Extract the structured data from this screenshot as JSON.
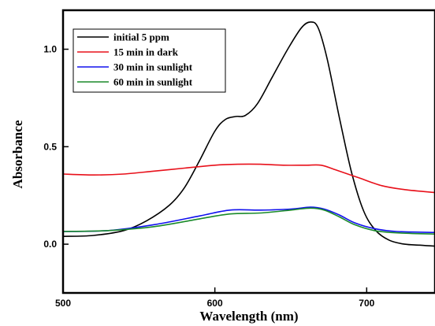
{
  "chart_data": {
    "type": "line",
    "title": "",
    "xlabel": "Wavelength (nm)",
    "ylabel": "Absorbance",
    "xlim": [
      500,
      745
    ],
    "ylim": [
      -0.25,
      1.2
    ],
    "x_ticks": [
      500,
      600,
      700
    ],
    "x_tick_labels": [
      "500",
      "600",
      "700"
    ],
    "y_ticks": [
      0.0,
      0.5,
      1.0
    ],
    "y_tick_labels": [
      "0.0",
      "0.5",
      "1.0"
    ],
    "grid": false,
    "legend_position": "top-left",
    "series": [
      {
        "name": "initial 5 ppm",
        "color": "#000000",
        "points": [
          [
            500,
            0.04
          ],
          [
            520,
            0.045
          ],
          [
            540,
            0.07
          ],
          [
            555,
            0.12
          ],
          [
            570,
            0.2
          ],
          [
            580,
            0.29
          ],
          [
            590,
            0.43
          ],
          [
            600,
            0.58
          ],
          [
            607,
            0.64
          ],
          [
            614,
            0.655
          ],
          [
            620,
            0.66
          ],
          [
            628,
            0.72
          ],
          [
            638,
            0.86
          ],
          [
            648,
            1.0
          ],
          [
            657,
            1.11
          ],
          [
            663,
            1.14
          ],
          [
            668,
            1.11
          ],
          [
            674,
            0.95
          ],
          [
            682,
            0.65
          ],
          [
            690,
            0.37
          ],
          [
            698,
            0.17
          ],
          [
            706,
            0.07
          ],
          [
            715,
            0.02
          ],
          [
            725,
            0.0
          ],
          [
            735,
            -0.005
          ],
          [
            745,
            -0.01
          ]
        ]
      },
      {
        "name": "15 min in dark",
        "color": "#e8101a",
        "points": [
          [
            500,
            0.36
          ],
          [
            520,
            0.355
          ],
          [
            540,
            0.36
          ],
          [
            560,
            0.375
          ],
          [
            580,
            0.39
          ],
          [
            600,
            0.405
          ],
          [
            615,
            0.41
          ],
          [
            630,
            0.41
          ],
          [
            645,
            0.405
          ],
          [
            660,
            0.405
          ],
          [
            670,
            0.405
          ],
          [
            680,
            0.38
          ],
          [
            695,
            0.34
          ],
          [
            710,
            0.3
          ],
          [
            725,
            0.28
          ],
          [
            745,
            0.265
          ]
        ]
      },
      {
        "name": "30 min in sunlight",
        "color": "#1010ee",
        "points": [
          [
            500,
            0.065
          ],
          [
            530,
            0.07
          ],
          [
            560,
            0.1
          ],
          [
            590,
            0.145
          ],
          [
            610,
            0.175
          ],
          [
            630,
            0.175
          ],
          [
            650,
            0.18
          ],
          [
            663,
            0.19
          ],
          [
            672,
            0.18
          ],
          [
            682,
            0.15
          ],
          [
            692,
            0.11
          ],
          [
            705,
            0.08
          ],
          [
            720,
            0.065
          ],
          [
            745,
            0.06
          ]
        ]
      },
      {
        "name": "60 min in sunlight",
        "color": "#1a8a2a",
        "points": [
          [
            500,
            0.065
          ],
          [
            530,
            0.07
          ],
          [
            560,
            0.09
          ],
          [
            590,
            0.13
          ],
          [
            610,
            0.155
          ],
          [
            630,
            0.16
          ],
          [
            650,
            0.175
          ],
          [
            663,
            0.185
          ],
          [
            672,
            0.175
          ],
          [
            682,
            0.14
          ],
          [
            692,
            0.1
          ],
          [
            705,
            0.07
          ],
          [
            720,
            0.058
          ],
          [
            745,
            0.052
          ]
        ]
      }
    ]
  }
}
